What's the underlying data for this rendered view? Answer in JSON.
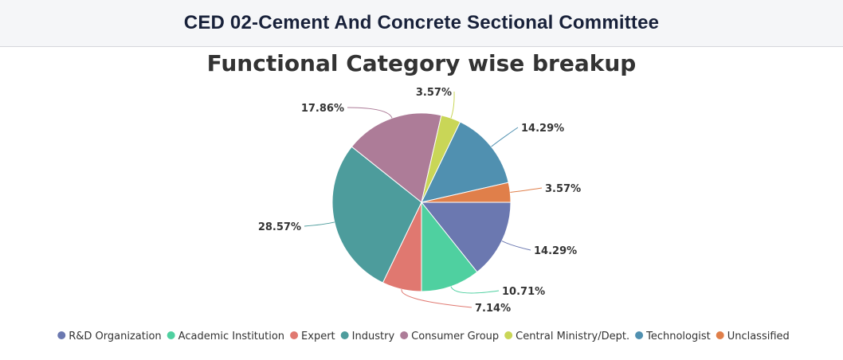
{
  "header": {
    "title": "CED 02-Cement And Concrete Sectional Committee"
  },
  "chart_data": {
    "type": "pie",
    "title": "Functional Category wise breakup",
    "slices": [
      {
        "name": "R&D Organization",
        "value": 14.29,
        "label": "14.29%",
        "color": "#6b78b0"
      },
      {
        "name": "Academic Institution",
        "value": 10.71,
        "label": "10.71%",
        "color": "#4fd0a0"
      },
      {
        "name": "Expert",
        "value": 7.14,
        "label": "7.14%",
        "color": "#e07870"
      },
      {
        "name": "Industry",
        "value": 28.57,
        "label": "28.57%",
        "color": "#4d9c9c"
      },
      {
        "name": "Consumer Group",
        "value": 17.86,
        "label": "17.86%",
        "color": "#ad7c98"
      },
      {
        "name": "Central Ministry/Dept.",
        "value": 3.57,
        "label": "3.57%",
        "color": "#c9d657"
      },
      {
        "name": "Technologist",
        "value": 14.29,
        "label": "14.29%",
        "color": "#5090b0"
      },
      {
        "name": "Unclassified",
        "value": 3.57,
        "label": "3.57%",
        "color": "#e07f4a"
      }
    ],
    "start_angle": "3 o'clock, clockwise",
    "legend_position": "bottom"
  }
}
